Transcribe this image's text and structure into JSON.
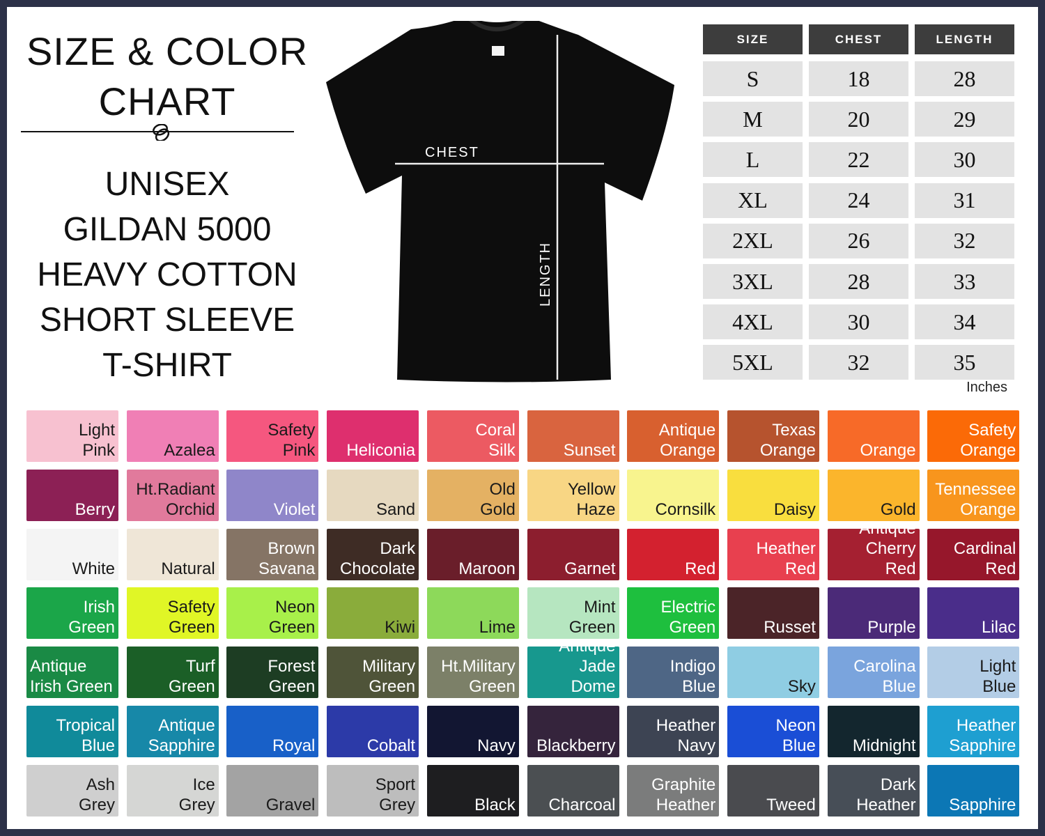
{
  "header": {
    "title_line1": "SIZE & COLOR",
    "title_line2": "CHART",
    "subtitle_lines": [
      "UNISEX",
      "GILDAN 5000",
      "HEAVY COTTON",
      "SHORT SLEEVE",
      "T-SHIRT"
    ]
  },
  "diagram": {
    "chest_label": "CHEST",
    "length_label": "LENGTH",
    "shirt_color": "#0d0d0d"
  },
  "size_table": {
    "headers": [
      "SIZE",
      "CHEST",
      "LENGTH"
    ],
    "rows": [
      [
        "S",
        "18",
        "28"
      ],
      [
        "M",
        "20",
        "29"
      ],
      [
        "L",
        "22",
        "30"
      ],
      [
        "XL",
        "24",
        "31"
      ],
      [
        "2XL",
        "26",
        "32"
      ],
      [
        "3XL",
        "28",
        "33"
      ],
      [
        "4XL",
        "30",
        "34"
      ],
      [
        "5XL",
        "32",
        "35"
      ]
    ],
    "unit": "Inches"
  },
  "colors": {
    "frame": "#2c3148",
    "header_bg": "#3d3d3d",
    "cell_bg": "#e3e3e3"
  },
  "swatches": [
    [
      {
        "name": "Light\nPink",
        "hex": "#f7c1d0",
        "t": "d"
      },
      {
        "name": "Azalea",
        "hex": "#f07fb5",
        "t": "d"
      },
      {
        "name": "Safety\nPink",
        "hex": "#f5577f",
        "t": "d"
      },
      {
        "name": "Heliconia",
        "hex": "#de2f6e",
        "t": "w"
      },
      {
        "name": "Coral\nSilk",
        "hex": "#ec5a62",
        "t": "w"
      },
      {
        "name": "Sunset",
        "hex": "#d9643f",
        "t": "w"
      },
      {
        "name": "Antique\nOrange",
        "hex": "#d8602f",
        "t": "w"
      },
      {
        "name": "Texas\nOrange",
        "hex": "#b6532e",
        "t": "w"
      },
      {
        "name": "Orange",
        "hex": "#f76a28",
        "t": "w"
      },
      {
        "name": "Safety\nOrange",
        "hex": "#fb6a07",
        "t": "w"
      }
    ],
    [
      {
        "name": "Berry",
        "hex": "#8c2055",
        "t": "w"
      },
      {
        "name": "Ht.Radiant\nOrchid",
        "hex": "#e17a9c",
        "t": "d"
      },
      {
        "name": "Violet",
        "hex": "#8f86c9",
        "t": "w"
      },
      {
        "name": "Sand",
        "hex": "#e6d9c0",
        "t": "d"
      },
      {
        "name": "Old\nGold",
        "hex": "#e4b163",
        "t": "d"
      },
      {
        "name": "Yellow\nHaze",
        "hex": "#f8d684",
        "t": "d"
      },
      {
        "name": "Cornsilk",
        "hex": "#f8f48e",
        "t": "d"
      },
      {
        "name": "Daisy",
        "hex": "#f9de3e",
        "t": "d"
      },
      {
        "name": "Gold",
        "hex": "#fbb52c",
        "t": "d"
      },
      {
        "name": "Tennessee\nOrange",
        "hex": "#f8951d",
        "t": "w"
      }
    ],
    [
      {
        "name": "White",
        "hex": "#f4f4f4",
        "t": "d"
      },
      {
        "name": "Natural",
        "hex": "#efe6d7",
        "t": "d"
      },
      {
        "name": "Brown\nSavana",
        "hex": "#857465",
        "t": "w"
      },
      {
        "name": "Dark\nChocolate",
        "hex": "#3e2c25",
        "t": "w"
      },
      {
        "name": "Maroon",
        "hex": "#6a1e2a",
        "t": "w"
      },
      {
        "name": "Garnet",
        "hex": "#8c1e2e",
        "t": "w"
      },
      {
        "name": "Red",
        "hex": "#d3212f",
        "t": "w"
      },
      {
        "name": "Heather\nRed",
        "hex": "#e8404f",
        "t": "w"
      },
      {
        "name": "Antique\nCherry Red",
        "hex": "#a52031",
        "t": "w"
      },
      {
        "name": "Cardinal\nRed",
        "hex": "#96172b",
        "t": "w"
      }
    ],
    [
      {
        "name": "Irish\nGreen",
        "hex": "#1ba649",
        "t": "w"
      },
      {
        "name": "Safety\nGreen",
        "hex": "#e0f626",
        "t": "d"
      },
      {
        "name": "Neon\nGreen",
        "hex": "#a8f04a",
        "t": "d"
      },
      {
        "name": "Kiwi",
        "hex": "#8aac3b",
        "t": "d"
      },
      {
        "name": "Lime",
        "hex": "#8dd95a",
        "t": "d"
      },
      {
        "name": "Mint\nGreen",
        "hex": "#b6e6c0",
        "t": "d"
      },
      {
        "name": "Electric\nGreen",
        "hex": "#1ebf3e",
        "t": "w"
      },
      {
        "name": "Russet",
        "hex": "#4b2428",
        "t": "w"
      },
      {
        "name": "Purple",
        "hex": "#4b2a78",
        "t": "w"
      },
      {
        "name": "Lilac",
        "hex": "#4a2d8a",
        "t": "w"
      }
    ],
    [
      {
        "name": "Antique\nIrish Green",
        "hex": "#1a8a45",
        "t": "w",
        "a": "l"
      },
      {
        "name": "Turf\nGreen",
        "hex": "#1b5f27",
        "t": "w"
      },
      {
        "name": "Forest\nGreen",
        "hex": "#1d3d23",
        "t": "w"
      },
      {
        "name": "Military\nGreen",
        "hex": "#4f5439",
        "t": "w"
      },
      {
        "name": "Ht.Military\nGreen",
        "hex": "#7c8068",
        "t": "w"
      },
      {
        "name": "Antique\nJade Dome",
        "hex": "#17988e",
        "t": "w"
      },
      {
        "name": "Indigo\nBlue",
        "hex": "#4e6685",
        "t": "w"
      },
      {
        "name": "Sky",
        "hex": "#8fcde3",
        "t": "d"
      },
      {
        "name": "Carolina\nBlue",
        "hex": "#7aa4dd",
        "t": "w"
      },
      {
        "name": "Light\nBlue",
        "hex": "#b3cde6",
        "t": "d"
      }
    ],
    [
      {
        "name": "Tropical\nBlue",
        "hex": "#108a9a",
        "t": "w"
      },
      {
        "name": "Antique\nSapphire",
        "hex": "#1788a8",
        "t": "w"
      },
      {
        "name": "Royal",
        "hex": "#1860c8",
        "t": "w"
      },
      {
        "name": "Cobalt",
        "hex": "#2c3aa8",
        "t": "w"
      },
      {
        "name": "Navy",
        "hex": "#121632",
        "t": "w"
      },
      {
        "name": "Blackberry",
        "hex": "#35243c",
        "t": "w"
      },
      {
        "name": "Heather\nNavy",
        "hex": "#3d4453",
        "t": "w"
      },
      {
        "name": "Neon\nBlue",
        "hex": "#1a4ed6",
        "t": "w"
      },
      {
        "name": "Midnight",
        "hex": "#13262e",
        "t": "w"
      },
      {
        "name": "Heather\nSapphire",
        "hex": "#1e9fd1",
        "t": "w"
      }
    ],
    [
      {
        "name": "Ash\nGrey",
        "hex": "#cfcfcf",
        "t": "d"
      },
      {
        "name": "Ice\nGrey",
        "hex": "#d5d6d4",
        "t": "d"
      },
      {
        "name": "Gravel",
        "hex": "#a3a3a3",
        "t": "d"
      },
      {
        "name": "Sport\nGrey",
        "hex": "#bdbdbd",
        "t": "d"
      },
      {
        "name": "Black",
        "hex": "#1e1e20",
        "t": "w"
      },
      {
        "name": "Charcoal",
        "hex": "#4b4f52",
        "t": "w"
      },
      {
        "name": "Graphite\nHeather",
        "hex": "#7b7c7c",
        "t": "w"
      },
      {
        "name": "Tweed",
        "hex": "#4a4b4f",
        "t": "w"
      },
      {
        "name": "Dark\nHeather",
        "hex": "#474e57",
        "t": "w"
      },
      {
        "name": "Sapphire",
        "hex": "#0c77b5",
        "t": "w"
      }
    ]
  ]
}
